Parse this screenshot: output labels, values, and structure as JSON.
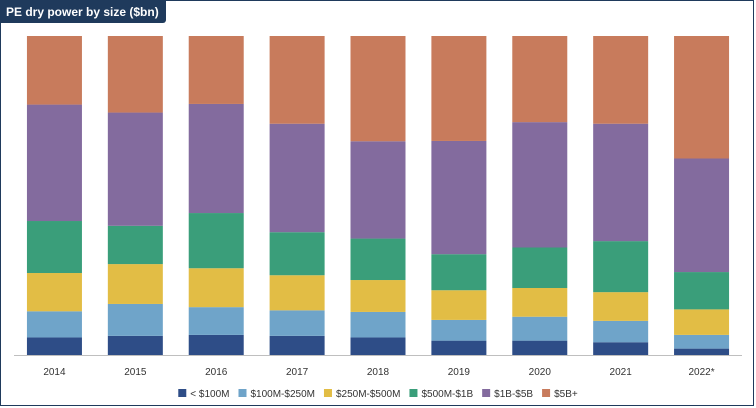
{
  "chart_data": {
    "type": "bar",
    "stacked": true,
    "normalized": true,
    "title": "PE dry power by size ($bn)",
    "xlabel": "",
    "ylabel": "",
    "ylim": [
      0,
      100
    ],
    "grid": false,
    "legend_position": "bottom",
    "categories": [
      "2014",
      "2015",
      "2016",
      "2017",
      "2018",
      "2019",
      "2020",
      "2021",
      "2022*"
    ],
    "series": [
      {
        "name": "< $100M",
        "color": "#2e4d87",
        "values": [
          5.5,
          6.0,
          6.3,
          6.0,
          5.5,
          4.5,
          4.5,
          4.0,
          2.0
        ]
      },
      {
        "name": "$100M-$250M",
        "color": "#6fa4c9",
        "values": [
          8.2,
          10.0,
          8.7,
          8.0,
          8.0,
          6.5,
          7.5,
          6.7,
          4.3
        ]
      },
      {
        "name": "$250M-$500M",
        "color": "#e2bd45",
        "values": [
          12.0,
          12.5,
          12.2,
          11.0,
          10.0,
          9.3,
          9.0,
          9.0,
          8.0
        ]
      },
      {
        "name": "$500M-$1B",
        "color": "#3a9e7a",
        "values": [
          16.3,
          12.0,
          17.3,
          13.5,
          13.0,
          11.3,
          12.7,
          16.0,
          11.7
        ]
      },
      {
        "name": "$1B-$5B",
        "color": "#836b9e",
        "values": [
          36.5,
          35.5,
          34.2,
          34.0,
          30.5,
          35.5,
          39.3,
          36.8,
          35.6
        ]
      },
      {
        "name": "$5B+",
        "color": "#c87b5c",
        "values": [
          21.5,
          24.0,
          21.3,
          27.5,
          33.0,
          32.9,
          27.0,
          27.5,
          38.4
        ]
      }
    ]
  }
}
